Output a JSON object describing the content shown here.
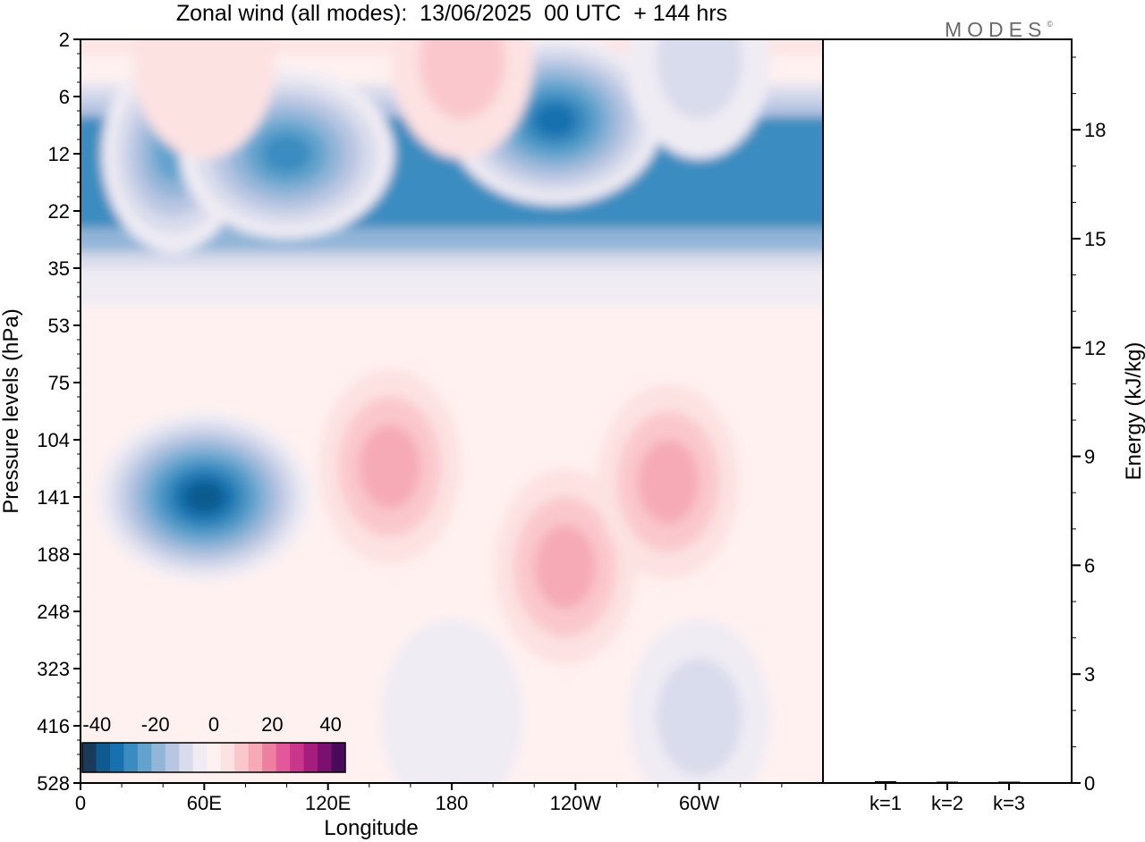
{
  "title": "Zonal wind (all modes):  13/06/2025  00 UTC  + 144 hrs",
  "brand": {
    "text": "MODES",
    "mark": "©"
  },
  "colors": {
    "scale": [
      "#1a3a5c",
      "#0f5a8e",
      "#1671ae",
      "#3a8cc0",
      "#62a3cd",
      "#92b5d8",
      "#b9c6e2",
      "#d9dcec",
      "#f0ecf4",
      "#fff1f0",
      "#fde2e2",
      "#fac8cc",
      "#f6aab6",
      "#ef7fa0",
      "#e2589a",
      "#c9368b",
      "#a51d7d",
      "#7b1070",
      "#4a0a5c"
    ]
  },
  "chart_data": [
    {
      "type": "heatmap",
      "title": "Zonal wind (all modes):  13/06/2025  00 UTC  + 144 hrs",
      "xlabel": "Longitude",
      "ylabel": "Pressure levels (hPa)",
      "x_ticks": [
        "0",
        "60E",
        "120E",
        "180",
        "120W",
        "60W"
      ],
      "y_ticks": [
        "2",
        "6",
        "12",
        "22",
        "35",
        "53",
        "75",
        "104",
        "141",
        "188",
        "248",
        "323",
        "416",
        "528"
      ],
      "colorbar": {
        "labels": [
          "-40",
          "-20",
          "0",
          "20",
          "40"
        ],
        "range": [
          -45,
          45
        ],
        "placement": "bottom-left"
      },
      "features": [
        {
          "lon": 60,
          "level": "141",
          "value": -40
        },
        {
          "lon": 45,
          "level": "12",
          "value": -25
        },
        {
          "lon": 230,
          "level": "8",
          "value": -35
        },
        {
          "lon": 100,
          "level": "12",
          "value": -30
        },
        {
          "lon": 150,
          "level": "120",
          "value": 15
        },
        {
          "lon": 235,
          "level": "200",
          "value": 15
        },
        {
          "lon": 285,
          "level": "130",
          "value": 15
        },
        {
          "lon": 185,
          "level": "3",
          "value": 10
        },
        {
          "lon": 60,
          "level": "3",
          "value": 5
        },
        {
          "lon": 300,
          "level": "400",
          "value": -10
        },
        {
          "lon": 180,
          "level": "400",
          "value": -5
        },
        {
          "lon": 300,
          "level": "3",
          "value": -8
        }
      ]
    },
    {
      "type": "bar",
      "ylabel": "Energy (kJ/kg)",
      "categories": [
        "k=1",
        "k=2",
        "k=3"
      ],
      "values": [
        0.05,
        0.03,
        0.01
      ],
      "ylim": [
        0,
        20
      ],
      "y_ticks": [
        0,
        3,
        6,
        9,
        12,
        15,
        18
      ]
    }
  ]
}
